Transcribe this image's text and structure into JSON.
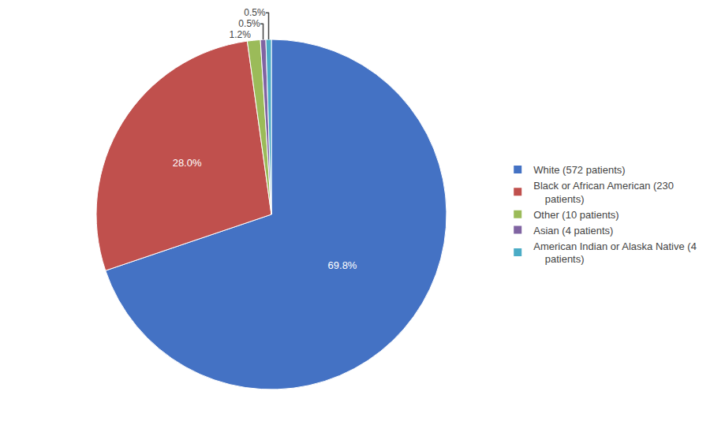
{
  "chart_data": {
    "type": "pie",
    "categories": [
      "White (572 patients)",
      "Black or African American (230\n    patients)",
      "Other (10 patients)",
      "Asian (4 patients)",
      "American Indian or Alaska Native (4\n    patients)"
    ],
    "values": [
      69.8,
      28.0,
      1.2,
      0.5,
      0.5
    ],
    "value_labels": [
      "69.8%",
      "28.0%",
      "1.2%",
      "0.5%",
      "0.5%"
    ],
    "colors": [
      "#4472c4",
      "#c0504d",
      "#9bbb59",
      "#8064a2",
      "#4bacc6"
    ],
    "data_labels": true,
    "legend": "right"
  }
}
